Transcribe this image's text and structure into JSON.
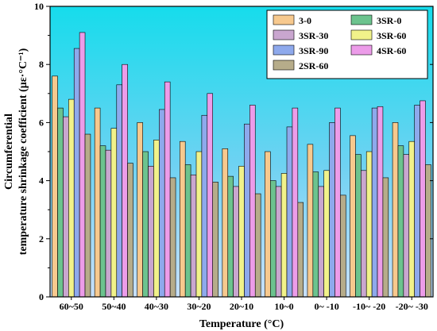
{
  "chart_data": {
    "type": "bar",
    "categories": [
      "60~50",
      "50~40",
      "40~30",
      "30~20",
      "20~10",
      "10~0",
      "0~ -10",
      "-10~ -20",
      "-20~ -30"
    ],
    "series": [
      {
        "name": "3-0",
        "color": "#f7c98e",
        "values": [
          7.6,
          6.5,
          6.0,
          5.35,
          5.1,
          5.0,
          5.25,
          5.55,
          6.0
        ]
      },
      {
        "name": "3SR-0",
        "color": "#6cc38e",
        "values": [
          6.5,
          5.2,
          5.0,
          4.55,
          4.15,
          4.0,
          4.3,
          4.9,
          5.2
        ]
      },
      {
        "name": "3SR-30",
        "color": "#c9a6cf",
        "values": [
          6.2,
          5.05,
          4.5,
          4.2,
          3.8,
          3.8,
          3.8,
          4.35,
          4.9
        ]
      },
      {
        "name": "3SR-60",
        "color": "#f1f28a",
        "values": [
          6.8,
          5.8,
          5.4,
          5.0,
          4.5,
          4.25,
          4.35,
          5.0,
          5.35
        ]
      },
      {
        "name": "3SR-90",
        "color": "#8ea9ec",
        "values": [
          8.55,
          7.3,
          6.45,
          6.25,
          5.95,
          5.85,
          6.0,
          6.5,
          6.6
        ]
      },
      {
        "name": "4SR-60",
        "color": "#ec9ce9",
        "values": [
          9.1,
          8.0,
          7.4,
          7.0,
          6.6,
          6.5,
          6.5,
          6.55,
          6.75
        ]
      },
      {
        "name": "2SR-60",
        "color": "#b6ac8a",
        "values": [
          5.6,
          4.6,
          4.1,
          3.95,
          3.55,
          3.25,
          3.5,
          4.1,
          4.55
        ]
      }
    ],
    "xlabel": "Temperature (°C)",
    "ylabel_line1": "Circumferential",
    "ylabel_line2": "temperature shrinkage coefficient (με·°C⁻¹)",
    "ylim": [
      0,
      10
    ],
    "yticks": [
      "0",
      "2",
      "4",
      "6",
      "8",
      "10"
    ],
    "grid": false,
    "legend": "top-right",
    "plot_background": "gradient-cyan-to-blue"
  }
}
